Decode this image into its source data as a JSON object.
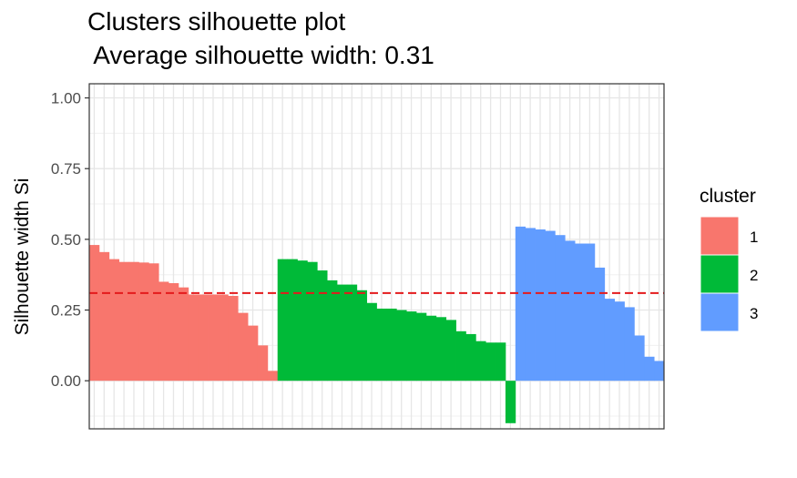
{
  "chart_data": {
    "type": "bar",
    "title": "Clusters silhouette plot",
    "subtitle": " Average silhouette width: 0.31",
    "xlabel": "",
    "ylabel": "Silhouette width Si",
    "ylim": [
      -0.17,
      1.05
    ],
    "yticks": [
      0,
      0.25,
      0.5,
      0.75,
      1
    ],
    "ytick_labels": [
      "0.00",
      "0.25",
      "0.50",
      "0.75",
      "1.00"
    ],
    "average_line": 0.31,
    "average_line_color": "#e41a1c",
    "grid": true,
    "legend_title": "cluster",
    "legend_position": "right",
    "series": [
      {
        "name": "1",
        "color": "#F8766D",
        "values": [
          0.48,
          0.455,
          0.43,
          0.42,
          0.42,
          0.418,
          0.415,
          0.35,
          0.345,
          0.33,
          0.305,
          0.305,
          0.305,
          0.305,
          0.3,
          0.24,
          0.195,
          0.125,
          0.035
        ]
      },
      {
        "name": "2",
        "color": "#00BA38",
        "values": [
          0.43,
          0.43,
          0.425,
          0.42,
          0.39,
          0.355,
          0.34,
          0.34,
          0.32,
          0.275,
          0.255,
          0.255,
          0.25,
          0.245,
          0.24,
          0.23,
          0.225,
          0.215,
          0.175,
          0.165,
          0.14,
          0.135,
          0.135,
          -0.15
        ]
      },
      {
        "name": "3",
        "color": "#619CFF",
        "values": [
          0.545,
          0.54,
          0.535,
          0.53,
          0.515,
          0.495,
          0.485,
          0.485,
          0.4,
          0.29,
          0.28,
          0.26,
          0.16,
          0.085,
          0.07
        ]
      }
    ]
  }
}
